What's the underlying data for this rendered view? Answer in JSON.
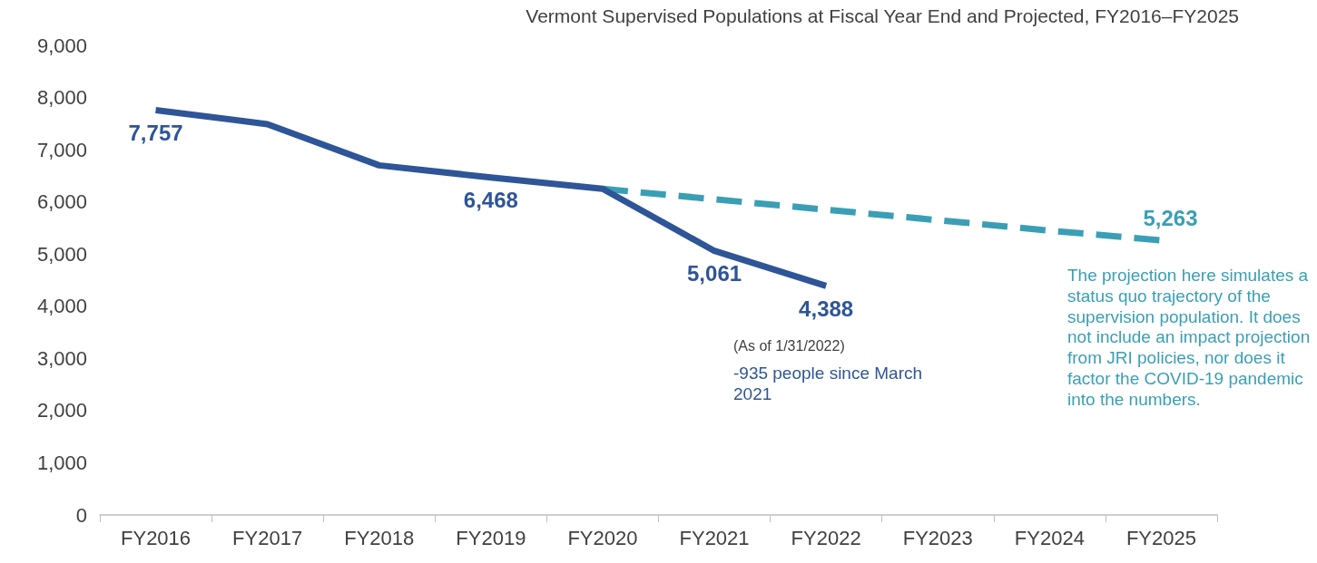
{
  "chart_data": {
    "type": "line",
    "title": "Vermont Supervised Populations at Fiscal Year End and Projected, FY2016–FY2025",
    "categories": [
      "FY2016",
      "FY2017",
      "FY2018",
      "FY2019",
      "FY2020",
      "FY2021",
      "FY2022",
      "FY2023",
      "FY2024",
      "FY2025"
    ],
    "series": [
      {
        "color": "#2e5597",
        "line_style": "solid",
        "values": [
          7757,
          7490,
          6700,
          6468,
          6250,
          5061,
          4388,
          null,
          null,
          null
        ],
        "value_labels": [
          "7,757",
          null,
          null,
          "6,468",
          null,
          "5,061",
          "4,388",
          null,
          null,
          null
        ]
      },
      {
        "color": "#3a9fb5",
        "line_style": "dashed",
        "values": [
          null,
          null,
          null,
          null,
          6250,
          6050,
          5850,
          5650,
          5450,
          5263
        ],
        "value_labels": [
          null,
          null,
          null,
          null,
          null,
          null,
          null,
          null,
          null,
          "5,263"
        ]
      }
    ],
    "ylim": [
      0,
      9000
    ],
    "yticks": [
      0,
      {
        "value": 1000,
        "label": "1,000"
      },
      {
        "value": 2000,
        "label": "2,000"
      },
      {
        "value": 3000,
        "label": "3,000"
      },
      {
        "value": 4000,
        "label": "4,000"
      },
      {
        "value": 5000,
        "label": "5,000"
      },
      {
        "value": 6000,
        "label": "6,000"
      },
      {
        "value": 7000,
        "label": "7,000"
      },
      {
        "value": 8000,
        "label": "8,000"
      },
      {
        "value": 9000,
        "label": "9,000"
      }
    ],
    "grid": false,
    "marker": "none",
    "annotations": [
      "(As of 1/31/2022)",
      "-935 people since March 2021",
      "The projection here simulates a status quo trajectory of the supervision population. It does not include an impact projection from JRI policies, nor does it factor the COVID-19 pandemic into the numbers."
    ]
  }
}
